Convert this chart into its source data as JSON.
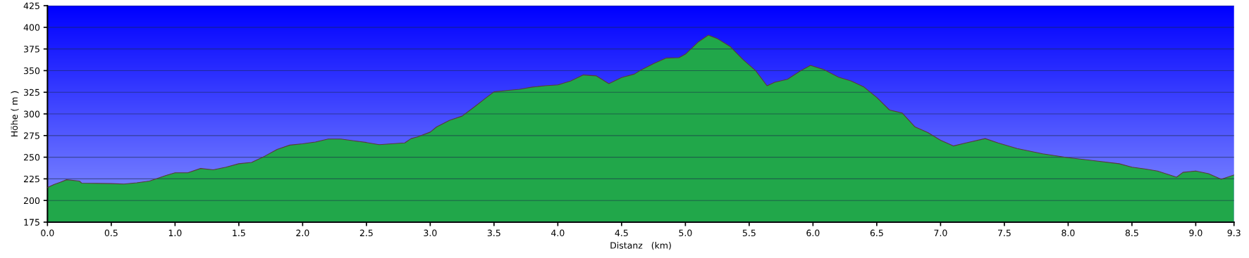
{
  "chart_data": {
    "type": "area",
    "xlabel": "Distanz   (km)",
    "ylabel": "Höhe ( m )",
    "x": [
      0.0,
      0.05,
      0.1,
      0.15,
      0.25,
      0.27,
      0.5,
      0.6,
      0.7,
      0.8,
      0.85,
      0.93,
      1.0,
      1.1,
      1.2,
      1.3,
      1.4,
      1.5,
      1.6,
      1.7,
      1.8,
      1.9,
      2.0,
      2.1,
      2.2,
      2.3,
      2.4,
      2.5,
      2.6,
      2.7,
      2.8,
      2.85,
      2.9,
      3.0,
      3.05,
      3.15,
      3.25,
      3.35,
      3.45,
      3.5,
      3.6,
      3.7,
      3.8,
      3.9,
      4.0,
      4.1,
      4.2,
      4.3,
      4.4,
      4.5,
      4.6,
      4.65,
      4.75,
      4.85,
      4.95,
      5.0,
      5.1,
      5.18,
      5.25,
      5.35,
      5.45,
      5.55,
      5.64,
      5.7,
      5.8,
      5.9,
      5.98,
      6.08,
      6.2,
      6.3,
      6.4,
      6.5,
      6.6,
      6.7,
      6.8,
      6.9,
      7.0,
      7.1,
      7.2,
      7.35,
      7.45,
      7.6,
      7.8,
      8.0,
      8.2,
      8.4,
      8.5,
      8.6,
      8.7,
      8.85,
      8.9,
      9.0,
      9.1,
      9.2,
      9.3
    ],
    "series": [
      {
        "color": "#21a74a",
        "values": [
          215,
          218.5,
          221,
          224,
          222.5,
          220,
          219.5,
          219,
          220.5,
          222.5,
          225,
          229,
          232,
          232,
          237,
          235.5,
          238.5,
          242.5,
          244,
          251,
          259,
          264,
          265.5,
          267.5,
          271,
          271,
          269,
          267,
          264.5,
          265.5,
          266.5,
          271.5,
          273.5,
          279,
          285,
          292.5,
          297.5,
          308.5,
          320,
          325.5,
          327,
          328.5,
          331,
          332.5,
          333.5,
          338,
          345,
          344,
          335,
          342,
          346,
          350.5,
          358,
          364.5,
          365,
          369,
          383,
          391,
          387,
          378,
          363,
          350,
          332.5,
          336.5,
          340,
          349.5,
          356,
          351.5,
          342.5,
          338,
          331,
          319,
          304.5,
          301,
          285,
          278.5,
          269.5,
          263,
          266.5,
          271.5,
          266.5,
          260,
          254,
          249.5,
          246,
          242.5,
          238.5,
          236.5,
          234,
          227,
          232.5,
          234,
          231,
          224.5,
          229.5
        ]
      }
    ],
    "xlim": [
      0,
      9.3
    ],
    "ylim": [
      175,
      425
    ],
    "xticks": [
      {
        "value": 0,
        "label": "0.0"
      },
      {
        "value": 0.5,
        "label": "0.5"
      },
      {
        "value": 1,
        "label": "1.0"
      },
      {
        "value": 1.5,
        "label": "1.5"
      },
      {
        "value": 2,
        "label": "2.0"
      },
      {
        "value": 2.5,
        "label": "2.5"
      },
      {
        "value": 3,
        "label": "3.0"
      },
      {
        "value": 3.5,
        "label": "3.5"
      },
      {
        "value": 4,
        "label": "4.0"
      },
      {
        "value": 4.5,
        "label": "4.5"
      },
      {
        "value": 5,
        "label": "5.0"
      },
      {
        "value": 5.5,
        "label": "5.5"
      },
      {
        "value": 6,
        "label": "6.0"
      },
      {
        "value": 6.5,
        "label": "6.5"
      },
      {
        "value": 7,
        "label": "7.0"
      },
      {
        "value": 7.5,
        "label": "7.5"
      },
      {
        "value": 8,
        "label": "8.0"
      },
      {
        "value": 8.5,
        "label": "8.5"
      },
      {
        "value": 9,
        "label": "9.0"
      },
      {
        "value": 9.3,
        "label": "9.3"
      }
    ],
    "yticks": [
      175,
      200,
      225,
      250,
      275,
      300,
      325,
      350,
      375,
      400,
      425
    ],
    "grid": "y"
  }
}
